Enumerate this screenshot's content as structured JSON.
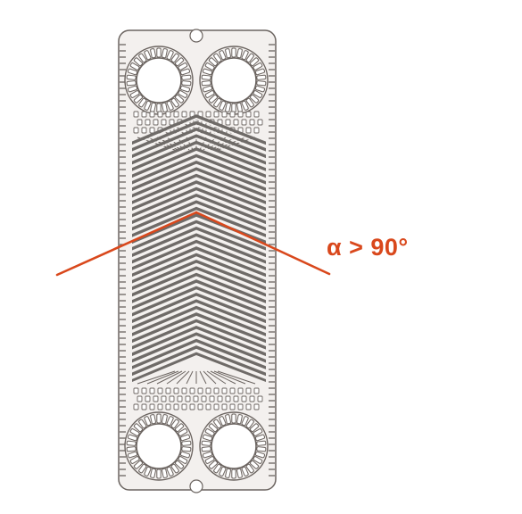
{
  "diagram": {
    "annotation": {
      "text": "α > 90°",
      "color": "#d9481c"
    },
    "colors": {
      "plate_fill": "#f3f0ee",
      "plate_stroke": "#6b6460",
      "corrugation_groove": "#6f6b68",
      "corrugation_highlight": "#f5f2f0",
      "port_fill": "#ffffff",
      "angle_line": "#d9481c"
    },
    "plate": {
      "corrugation_pattern": "chevron",
      "ports": 4
    }
  }
}
